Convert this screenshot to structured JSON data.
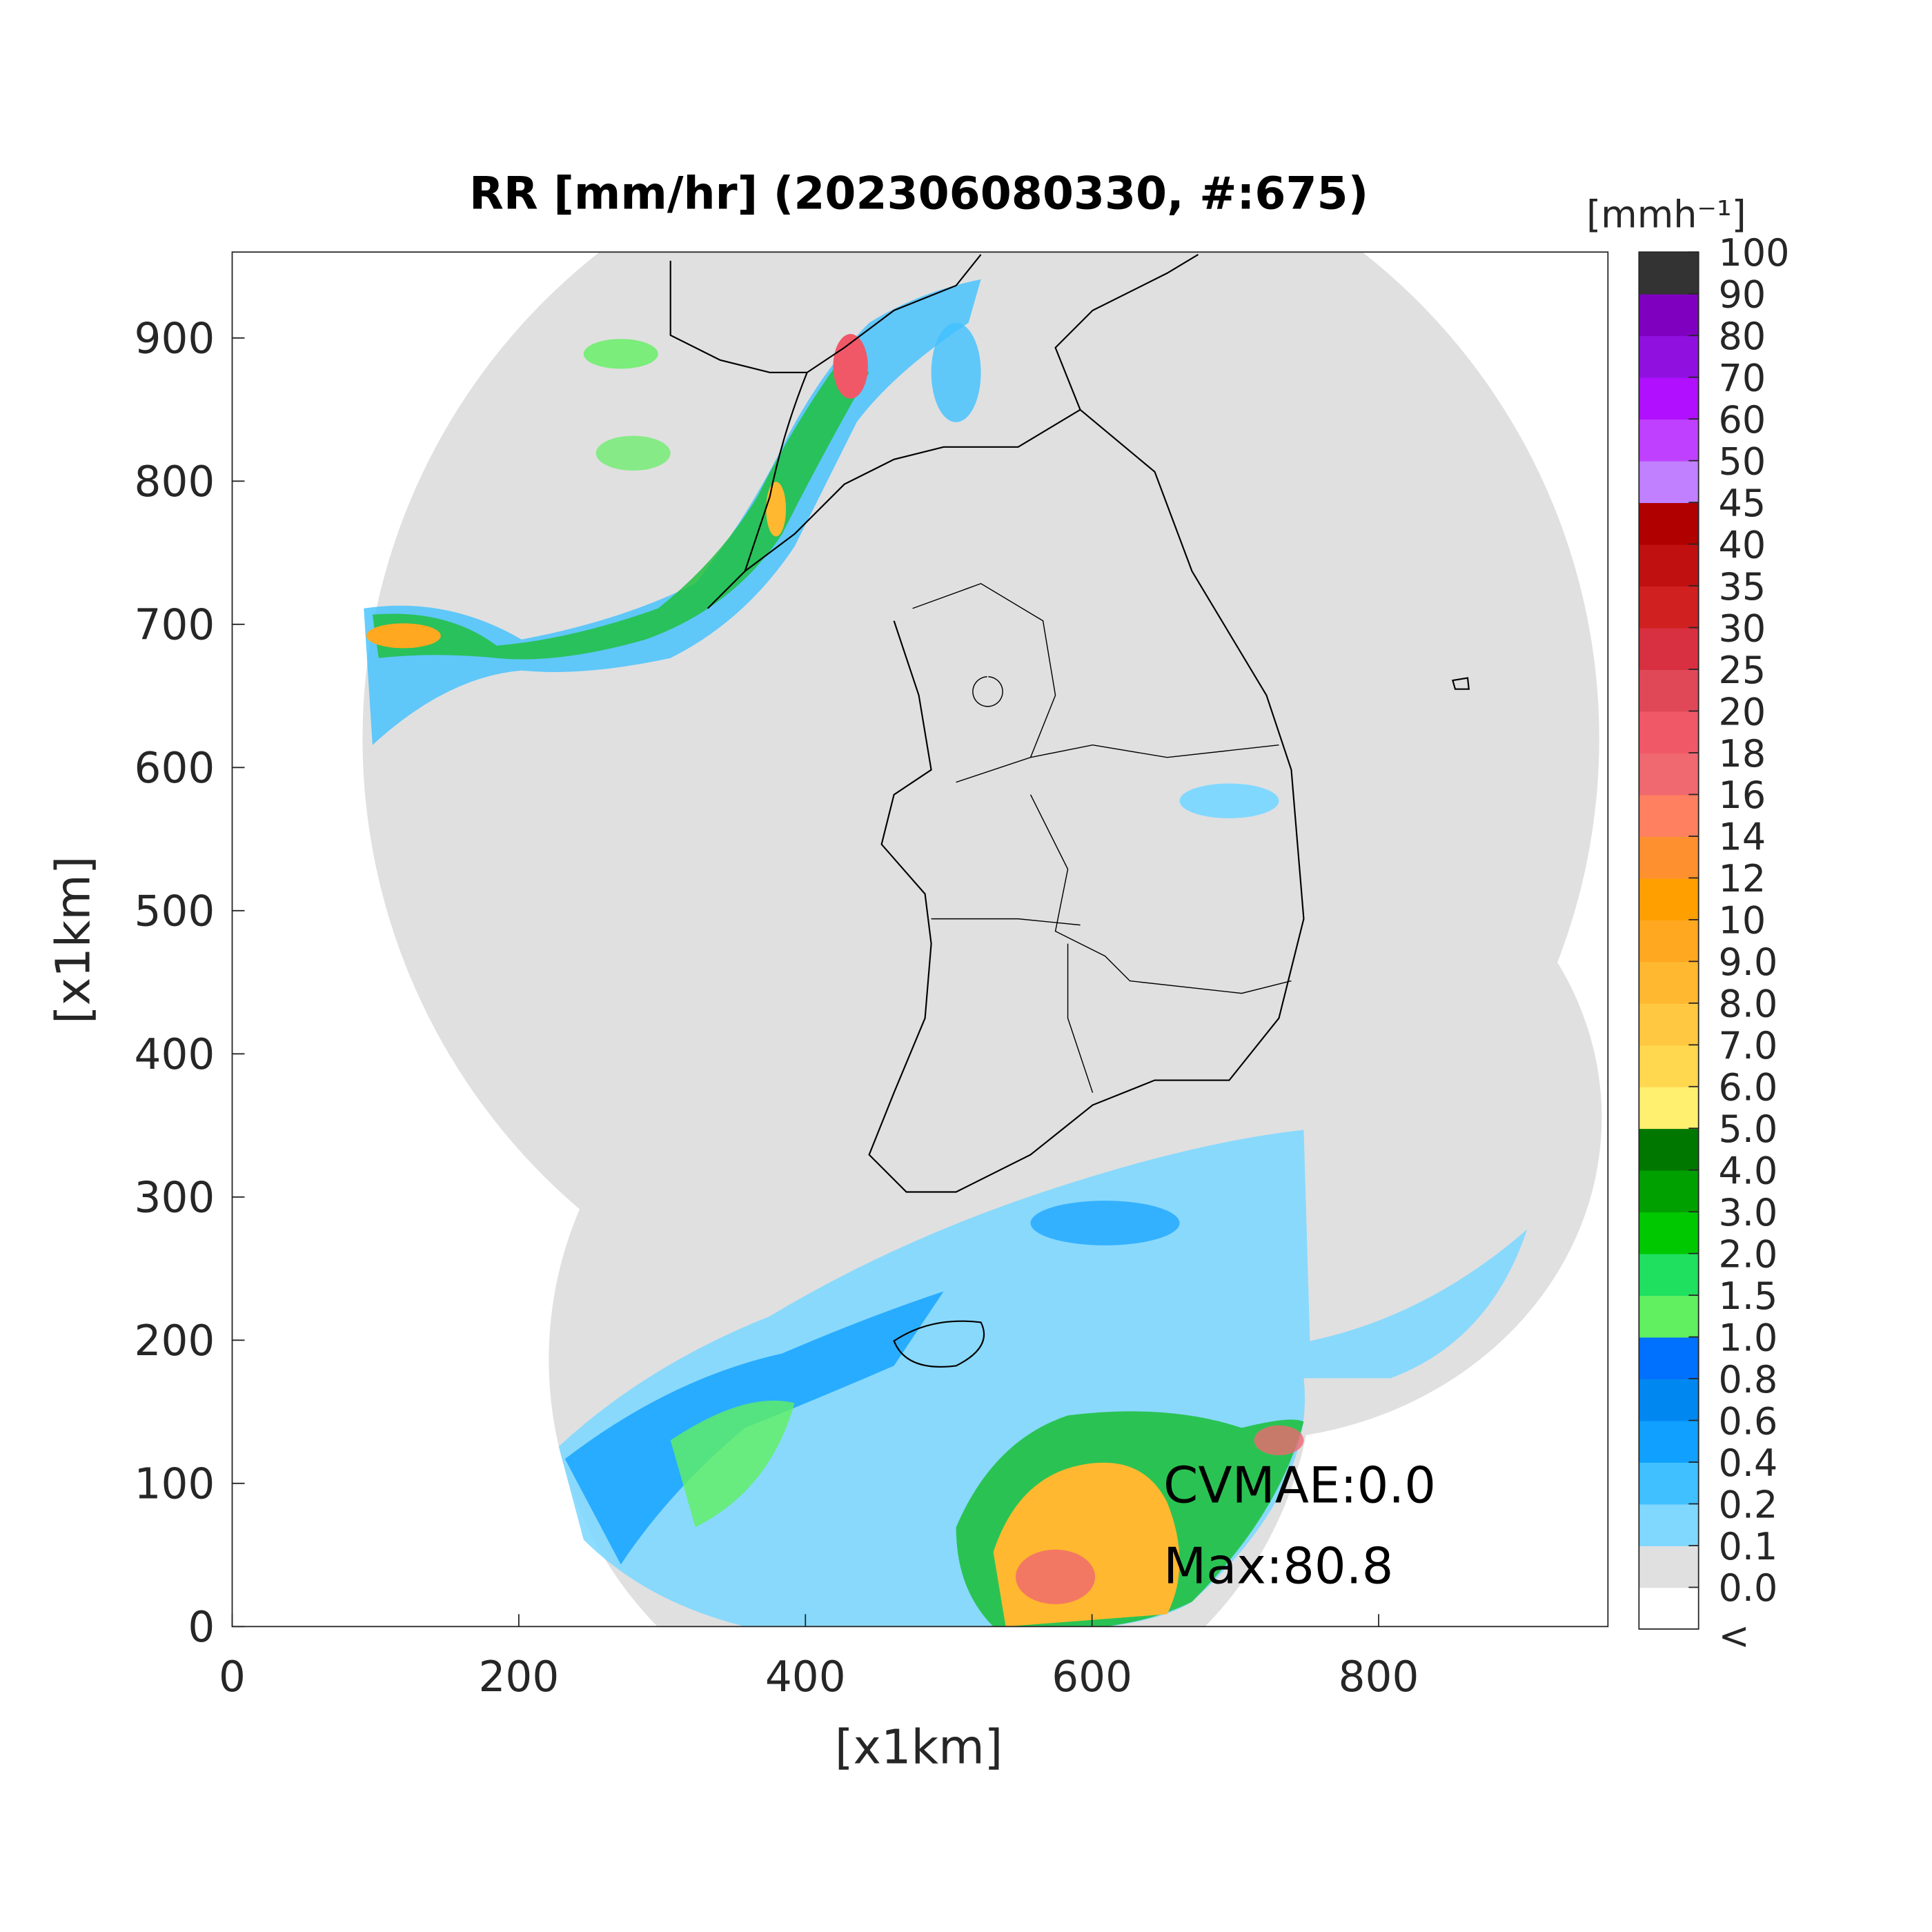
{
  "chart_data": {
    "type": "map",
    "title": "RR [mm/hr] (202306080330, #:675)",
    "x_label": "[x1km]",
    "y_label": "[x1km]",
    "xlim": [
      0,
      960
    ],
    "ylim": [
      0,
      960
    ],
    "xticks": [
      0,
      200,
      400,
      600,
      800
    ],
    "yticks": [
      0,
      100,
      200,
      300,
      400,
      500,
      600,
      700,
      800,
      900
    ],
    "annotations": [
      "CVMAE:0.0",
      "Max:80.8"
    ],
    "colorbar": {
      "title": "[mmh⁻¹]",
      "under_label": "<",
      "under_color": "#ffffff",
      "ticks": [
        {
          "value": 0,
          "label": "0.0"
        },
        0.1,
        0.2,
        0.4,
        0.6,
        0.8,
        {
          "value": 1,
          "label": "1.0"
        },
        1.5,
        {
          "value": 2,
          "label": "2.0"
        },
        {
          "value": 3,
          "label": "3.0"
        },
        {
          "value": 4,
          "label": "4.0"
        },
        {
          "value": 5,
          "label": "5.0"
        },
        {
          "value": 6,
          "label": "6.0"
        },
        {
          "value": 7,
          "label": "7.0"
        },
        {
          "value": 8,
          "label": "8.0"
        },
        {
          "value": 9,
          "label": "9.0"
        },
        10,
        12,
        14,
        16,
        18,
        20,
        25,
        30,
        35,
        40,
        45,
        50,
        60,
        70,
        80,
        90,
        100
      ],
      "colors": [
        "#e0e0e0",
        "#80d8ff",
        "#40c0ff",
        "#10a0ff",
        "#0088f0",
        "#0070ff",
        "#60f060",
        "#20e060",
        "#00c800",
        "#00a000",
        "#007800",
        "#fff070",
        "#ffd850",
        "#ffc840",
        "#ffb830",
        "#ffa820",
        "#ffa000",
        "#ff9030",
        "#ff8060",
        "#f06870",
        "#f05868",
        "#e04858",
        "#d83040",
        "#d02020",
        "#c01010",
        "#b00000",
        "#c080ff",
        "#c040ff",
        "#b010ff",
        "#9010e0",
        "#8000c0",
        "#333333"
      ]
    }
  }
}
